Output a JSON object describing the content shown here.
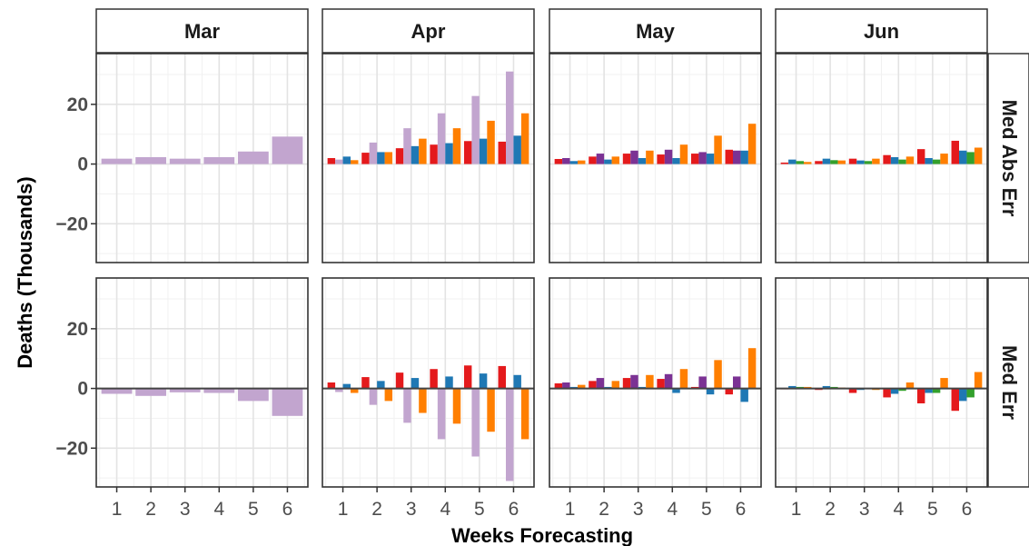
{
  "chart_data": {
    "type": "bar",
    "facet_columns": [
      "Mar",
      "Apr",
      "May",
      "Jun"
    ],
    "facet_rows": [
      "Med Abs Err",
      "Med Err"
    ],
    "xlabel": "Weeks Forecasting",
    "ylabel": "Deaths (Thousands)",
    "x": [
      1,
      2,
      3,
      4,
      5,
      6
    ],
    "ylim": [
      -33,
      37
    ],
    "yticks": [
      -20,
      0,
      20
    ],
    "grid": true,
    "legend": "none",
    "colors": [
      "#e41a1c",
      "#c2a5cf",
      "#7b3294",
      "#1f78b4",
      "#33a02c",
      "#ff7f00"
    ],
    "panels": {
      "Med Abs Err": {
        "Mar": [
          {
            "color": "#c2a5cf",
            "values": [
              1.8,
              2.3,
              1.8,
              2.3,
              4.2,
              9.2
            ]
          }
        ],
        "Apr": [
          {
            "color": "#e41a1c",
            "values": [
              2.0,
              3.8,
              5.3,
              6.5,
              7.7,
              7.5
            ]
          },
          {
            "color": "#c2a5cf",
            "values": [
              1.5,
              7.2,
              12.0,
              17.0,
              22.8,
              31.0
            ]
          },
          {
            "color": "#1f78b4",
            "values": [
              2.5,
              4.0,
              6.0,
              7.0,
              8.5,
              9.5
            ]
          },
          {
            "color": "#ff7f00",
            "values": [
              1.3,
              4.0,
              8.5,
              12.0,
              14.5,
              17.0
            ]
          }
        ],
        "May": [
          {
            "color": "#e41a1c",
            "values": [
              1.7,
              2.5,
              3.5,
              3.2,
              3.5,
              4.8
            ]
          },
          {
            "color": "#7b3294",
            "values": [
              2.0,
              3.5,
              4.5,
              4.8,
              4.0,
              4.5
            ]
          },
          {
            "color": "#1f78b4",
            "values": [
              1.0,
              1.5,
              2.0,
              2.0,
              3.5,
              4.5
            ]
          },
          {
            "color": "#ff7f00",
            "values": [
              1.2,
              2.5,
              4.5,
              6.5,
              9.5,
              13.5
            ]
          }
        ],
        "Jun": [
          {
            "color": "#e41a1c",
            "values": [
              0.5,
              1.0,
              1.8,
              3.0,
              5.0,
              7.8
            ]
          },
          {
            "color": "#1f78b4",
            "values": [
              1.5,
              1.8,
              1.2,
              2.3,
              2.0,
              4.5
            ]
          },
          {
            "color": "#33a02c",
            "values": [
              1.0,
              1.3,
              1.0,
              1.5,
              1.5,
              4.0
            ]
          },
          {
            "color": "#ff7f00",
            "values": [
              0.7,
              1.2,
              1.8,
              2.5,
              3.5,
              5.5
            ]
          }
        ]
      },
      "Med Err": {
        "Mar": [
          {
            "color": "#c2a5cf",
            "values": [
              -1.8,
              -2.5,
              -1.3,
              -1.5,
              -4.2,
              -9.2
            ]
          }
        ],
        "Apr": [
          {
            "color": "#e41a1c",
            "values": [
              2.0,
              3.8,
              5.3,
              6.5,
              7.7,
              7.5
            ]
          },
          {
            "color": "#c2a5cf",
            "values": [
              -1.2,
              -5.5,
              -11.5,
              -17.0,
              -22.8,
              -31.0
            ]
          },
          {
            "color": "#1f78b4",
            "values": [
              1.5,
              2.5,
              3.5,
              4.0,
              5.0,
              4.5
            ]
          },
          {
            "color": "#ff7f00",
            "values": [
              -1.5,
              -4.2,
              -8.2,
              -11.8,
              -14.5,
              -17.0
            ]
          }
        ],
        "May": [
          {
            "color": "#e41a1c",
            "values": [
              1.7,
              2.5,
              3.5,
              3.2,
              0.5,
              -2.0
            ]
          },
          {
            "color": "#7b3294",
            "values": [
              2.0,
              3.5,
              4.5,
              4.8,
              4.0,
              4.0
            ]
          },
          {
            "color": "#1f78b4",
            "values": [
              0.5,
              0.5,
              0.5,
              -1.5,
              -2.0,
              -4.5
            ]
          },
          {
            "color": "#ff7f00",
            "values": [
              1.2,
              2.5,
              4.5,
              6.5,
              9.5,
              13.5
            ]
          }
        ],
        "Jun": [
          {
            "color": "#e41a1c",
            "values": [
              -0.3,
              -0.5,
              -1.5,
              -3.0,
              -5.0,
              -7.5
            ]
          },
          {
            "color": "#1f78b4",
            "values": [
              0.8,
              0.8,
              -0.5,
              -1.8,
              -1.5,
              -4.2
            ]
          },
          {
            "color": "#33a02c",
            "values": [
              0.5,
              0.5,
              -0.2,
              -0.8,
              -1.5,
              -3.0
            ]
          },
          {
            "color": "#ff7f00",
            "values": [
              0.5,
              0.3,
              -0.5,
              2.0,
              3.5,
              5.5
            ]
          }
        ]
      }
    }
  }
}
